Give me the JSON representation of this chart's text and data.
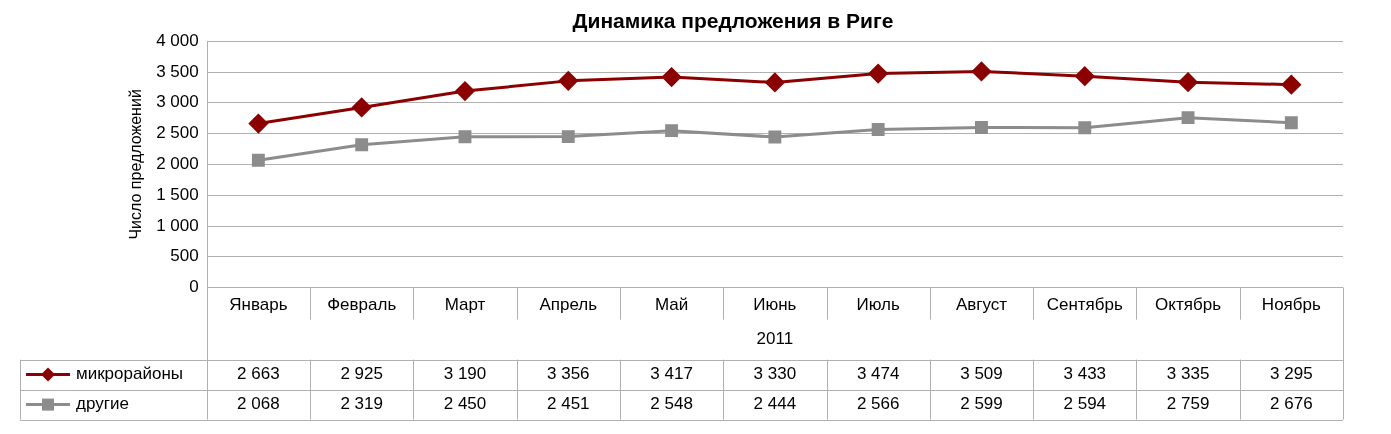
{
  "chart_data": {
    "type": "line",
    "title": "Динамика предложения в Риге",
    "ylabel": "Число предложений",
    "xlabel": "2011",
    "categories": [
      "Январь",
      "Февраль",
      "Март",
      "Апрель",
      "Май",
      "Июнь",
      "Июль",
      "Август",
      "Сентябрь",
      "Октябрь",
      "Ноябрь"
    ],
    "series": [
      {
        "name": "микрорайоны",
        "color": "#8b0000",
        "marker": "diamond",
        "values": [
          2663,
          2925,
          3190,
          3356,
          3417,
          3330,
          3474,
          3509,
          3433,
          3335,
          3295
        ]
      },
      {
        "name": "другие",
        "color": "#8c8c8c",
        "marker": "square",
        "values": [
          2068,
          2319,
          2450,
          2451,
          2548,
          2444,
          2566,
          2599,
          2594,
          2759,
          2676
        ]
      }
    ],
    "ylim": [
      0,
      4000
    ],
    "yticks": [
      0,
      {
        "value": 500,
        "label": "500"
      },
      {
        "value": 1000,
        "label": "1 000"
      },
      {
        "value": 1500,
        "label": "1 500"
      },
      {
        "value": 2000,
        "label": "2 000"
      },
      {
        "value": 2500,
        "label": "2 500"
      },
      {
        "value": 3000,
        "label": "3 000"
      },
      {
        "value": 3500,
        "label": "3 500"
      },
      {
        "value": 4000,
        "label": "4 000"
      }
    ],
    "grid": "y",
    "legend": "bottom",
    "data_labels": true
  }
}
